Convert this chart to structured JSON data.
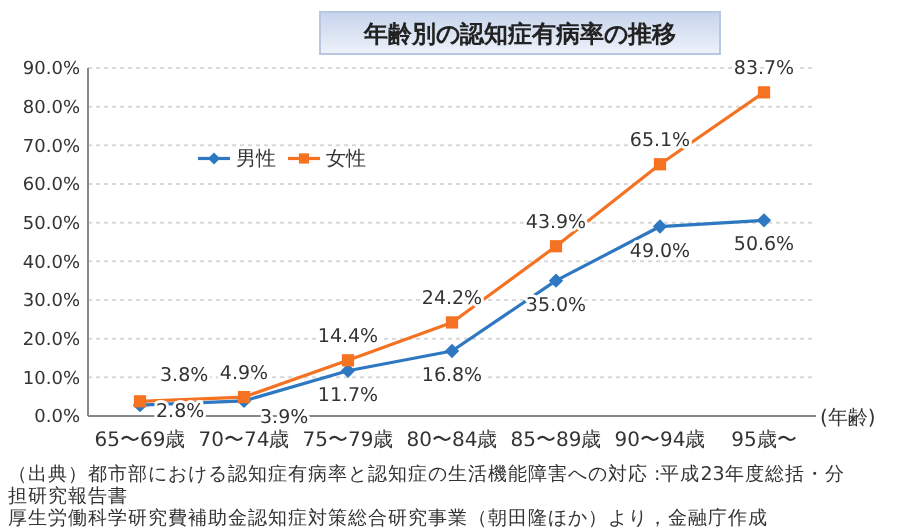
{
  "chart_data": {
    "type": "line",
    "title": "年齢別の認知症有病率の推移",
    "xlabel": "(年齢)",
    "categories": [
      "65〜69歳",
      "70〜74歳",
      "75〜79歳",
      "80〜84歳",
      "85〜89歳",
      "90〜94歳",
      "95歳〜"
    ],
    "series": [
      {
        "name": "男性",
        "color": "#2e78c2",
        "marker": "diamond",
        "values": [
          2.8,
          3.9,
          11.7,
          16.8,
          35.0,
          49.0,
          50.6
        ],
        "value_labels": [
          "2.8%",
          "3.9%",
          "11.7%",
          "16.8%",
          "35.0%",
          "49.0%",
          "50.6%"
        ]
      },
      {
        "name": "女性",
        "color": "#f47221",
        "marker": "square",
        "values": [
          3.8,
          4.9,
          14.4,
          24.2,
          43.9,
          65.1,
          83.7
        ],
        "value_labels": [
          "3.8%",
          "4.9%",
          "14.4%",
          "24.2%",
          "43.9%",
          "65.1%",
          "83.7%"
        ]
      }
    ],
    "ylim": [
      0,
      90
    ],
    "yticks": [
      {
        "value": 0,
        "label": "0.0%"
      },
      {
        "value": 10,
        "label": "10.0%"
      },
      {
        "value": 20,
        "label": "20.0%"
      },
      {
        "value": 30,
        "label": "30.0%"
      },
      {
        "value": 40,
        "label": "40.0%"
      },
      {
        "value": 50,
        "label": "50.0%"
      },
      {
        "value": 60,
        "label": "60.0%"
      },
      {
        "value": 70,
        "label": "70.0%"
      },
      {
        "value": 80,
        "label": "80.0%"
      },
      {
        "value": 90,
        "label": "90.0%"
      }
    ],
    "grid": "y",
    "legend": "top left",
    "line_style": "solid",
    "annotations": [
      "（出典）都市部における認知症有病率と認知症の生活機能障害への対応 :平成23年度総括・分担研究報告書",
      "厚生労働科学研究費補助金認知症対策総合研究事業（朝田隆ほか）より，金融庁作成"
    ]
  }
}
